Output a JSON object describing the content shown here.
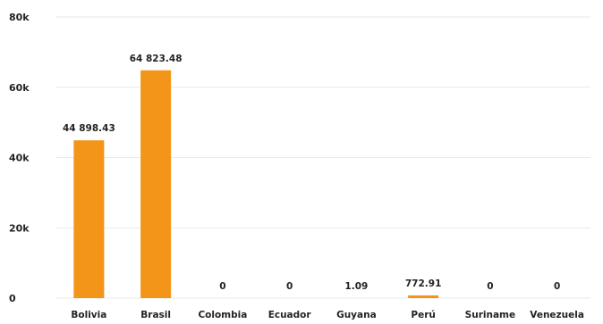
{
  "chart_data": {
    "type": "bar",
    "categories": [
      "Bolivia",
      "Brasil",
      "Colombia",
      "Ecuador",
      "Guyana",
      "Perú",
      "Suriname",
      "Venezuela"
    ],
    "values": [
      44898.43,
      64823.48,
      0,
      0,
      1.09,
      772.91,
      0,
      0
    ],
    "value_labels": [
      "44 898.43",
      "64 823.48",
      "0",
      "0",
      "1.09",
      "772.91",
      "0",
      "0"
    ],
    "yticks": [
      0,
      20000,
      40000,
      60000,
      80000
    ],
    "ytick_labels": [
      "0",
      "20k",
      "40k",
      "60k",
      "80k"
    ],
    "ylim": [
      0,
      80000
    ],
    "grid": true,
    "colors": {
      "bar": "#F39518",
      "grid": "#E9E9E9",
      "text": "#222222"
    }
  }
}
